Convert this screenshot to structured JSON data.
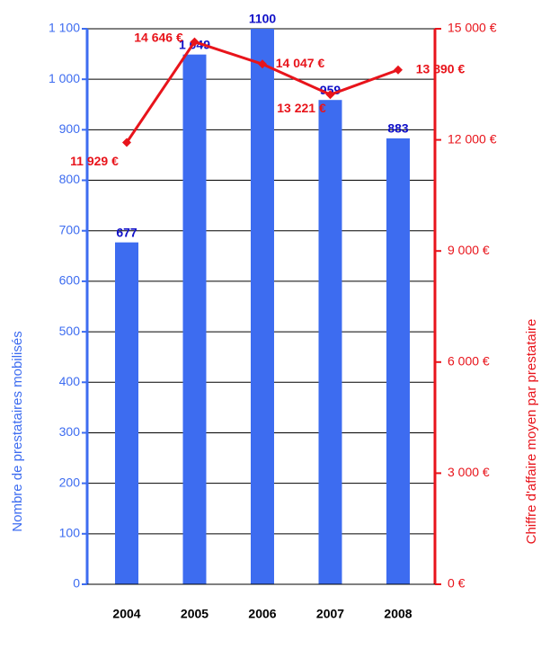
{
  "chart_data": {
    "type": "bar_line",
    "categories": [
      "2004",
      "2005",
      "2006",
      "2007",
      "2008"
    ],
    "y_label": "Nombre de prestataires mobilisés",
    "y2_label": "Chiffre d'affaire moyen par prestataire",
    "ylim": [
      0,
      1100
    ],
    "yticks": [
      0,
      100,
      200,
      300,
      400,
      500,
      600,
      700,
      800,
      900,
      {
        "value": 1000,
        "label": "1 000"
      },
      {
        "value": 1100,
        "label": "1 100"
      }
    ],
    "y2lim": [
      0,
      15000
    ],
    "y2ticks": [
      {
        "value": 0,
        "label": "0 €"
      },
      {
        "value": 3000,
        "label": "3 000 €"
      },
      {
        "value": 6000,
        "label": "6 000 €"
      },
      {
        "value": 9000,
        "label": "9 000 €"
      },
      {
        "value": 12000,
        "label": "12 000 €"
      },
      {
        "value": 15000,
        "label": "15 000 €"
      }
    ],
    "grid": true,
    "series": [
      {
        "type": "bar",
        "color": "#3d6cf0",
        "values": [
          677,
          1049,
          1100,
          959,
          883
        ],
        "value_labels": [
          "677",
          "1 049",
          "1100",
          "959",
          "883"
        ]
      },
      {
        "type": "line",
        "axis": "y2",
        "color": "#e8141b",
        "values": [
          11929,
          14646,
          14047,
          13221,
          13890
        ],
        "value_labels": [
          "11 929 €",
          "14 646 €",
          "14 047 €",
          "13 221 €",
          "13 890 €"
        ]
      }
    ]
  }
}
